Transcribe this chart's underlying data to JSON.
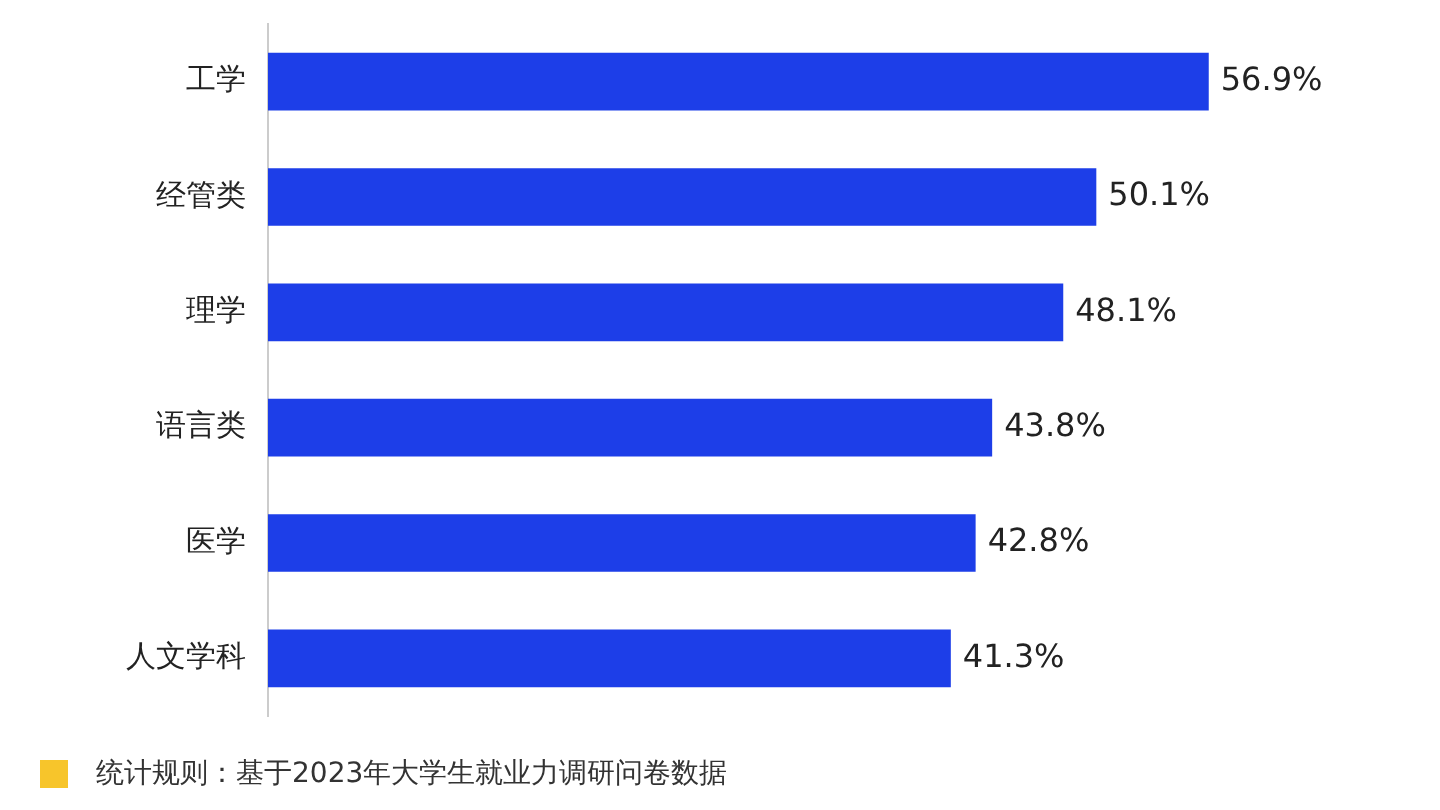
{
  "chart_data": {
    "type": "bar",
    "orientation": "horizontal",
    "categories": [
      "工学",
      "经管类",
      "理学",
      "语言类",
      "医学",
      "人文学科"
    ],
    "values": [
      56.9,
      50.1,
      48.1,
      43.8,
      42.8,
      41.3
    ],
    "value_labels": [
      "56.9%",
      "50.1%",
      "48.1%",
      "43.8%",
      "42.8%",
      "41.3%"
    ],
    "color": "#1d3ee8",
    "annotations": [
      "统计规则：基于2023年大学生就业力调研问卷数据"
    ]
  }
}
